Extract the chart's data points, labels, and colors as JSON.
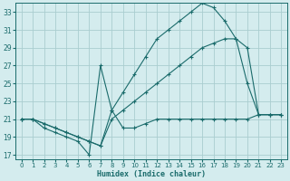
{
  "xlabel": "Humidex (Indice chaleur)",
  "bg_color": "#d4ecee",
  "grid_color": "#aacdd0",
  "line_color": "#1a6b6b",
  "xlim": [
    -0.5,
    23.5
  ],
  "ylim": [
    16.5,
    34.0
  ],
  "xticks": [
    0,
    1,
    2,
    3,
    4,
    5,
    6,
    7,
    8,
    9,
    10,
    11,
    12,
    13,
    14,
    15,
    16,
    17,
    18,
    19,
    20,
    21,
    22,
    23
  ],
  "yticks": [
    17,
    19,
    21,
    23,
    25,
    27,
    29,
    31,
    33
  ],
  "line_top": {
    "x": [
      0,
      1,
      2,
      3,
      4,
      5,
      6,
      7,
      8,
      9,
      10,
      11,
      12,
      13,
      14,
      15,
      16,
      17,
      18,
      19,
      20,
      21,
      22,
      23
    ],
    "y": [
      21,
      21,
      20.5,
      20,
      19.5,
      19,
      18.5,
      18,
      22,
      24,
      26,
      28,
      30,
      31,
      32,
      33,
      34,
      33.5,
      32,
      30,
      25,
      21.5,
      21.5,
      21.5
    ]
  },
  "line_mid": {
    "x": [
      0,
      1,
      2,
      3,
      4,
      5,
      6,
      7,
      8,
      9,
      10,
      11,
      12,
      13,
      14,
      15,
      16,
      17,
      18,
      19,
      20,
      21,
      22,
      23
    ],
    "y": [
      21,
      21,
      20.5,
      20,
      19.5,
      19,
      18.5,
      18,
      21,
      22,
      23,
      24,
      25,
      26,
      27,
      28,
      29,
      29.5,
      30,
      30,
      29,
      21.5,
      21.5,
      21.5
    ]
  },
  "line_vol": {
    "x": [
      0,
      1,
      2,
      3,
      4,
      5,
      6,
      7,
      8,
      9,
      10,
      11,
      12,
      13,
      14,
      15,
      16,
      17,
      18,
      19,
      20,
      21,
      22,
      23
    ],
    "y": [
      21,
      21,
      20,
      19.5,
      19,
      18.5,
      17,
      27,
      22,
      20,
      20,
      20.5,
      21,
      21,
      21,
      21,
      21,
      21,
      21,
      21,
      21,
      21.5,
      21.5,
      21.5
    ]
  }
}
